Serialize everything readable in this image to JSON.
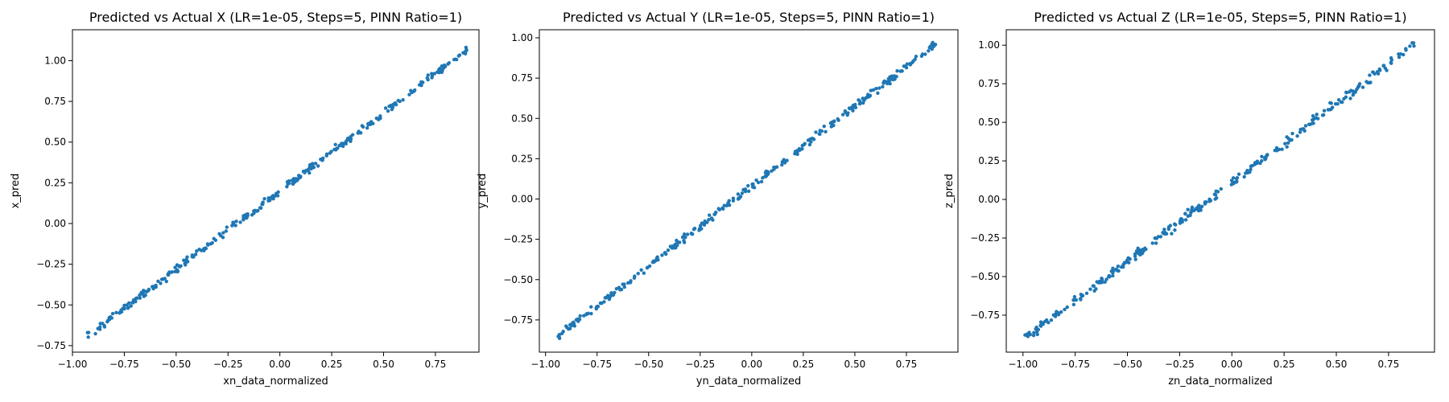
{
  "chart_data": [
    {
      "type": "scatter",
      "title": "Predicted vs Actual X (LR=1e-05, Steps=5, PINN Ratio=1)",
      "xlabel": "xn_data_normalized",
      "ylabel": "x_pred",
      "xlim": [
        -1.0,
        0.96
      ],
      "ylim": [
        -0.79,
        1.19
      ],
      "xticks": [
        -1.0,
        -0.75,
        -0.5,
        -0.25,
        0.0,
        0.25,
        0.5,
        0.75
      ],
      "yticks": [
        -0.75,
        -0.5,
        -0.25,
        0.0,
        0.25,
        0.5,
        0.75,
        1.0
      ],
      "xtick_labels": [
        "−1.00",
        "−0.75",
        "−0.50",
        "−0.25",
        "0.00",
        "0.25",
        "0.50",
        "0.75"
      ],
      "ytick_labels": [
        "−0.75",
        "−0.50",
        "−0.25",
        "0.00",
        "0.25",
        "0.50",
        "0.75",
        "1.00"
      ],
      "color": "#1f77b4",
      "grid": false,
      "x_range": [
        -0.93,
        0.9
      ],
      "fit": {
        "slope": 0.96,
        "intercept": 0.2
      },
      "noise": 0.02,
      "n_points": 300
    },
    {
      "type": "scatter",
      "title": "Predicted vs Actual Y (LR=1e-05, Steps=5, PINN Ratio=1)",
      "xlabel": "yn_data_normalized",
      "ylabel": "y_pred",
      "xlim": [
        -1.03,
        1.0
      ],
      "ylim": [
        -0.95,
        1.05
      ],
      "xticks": [
        -1.0,
        -0.75,
        -0.5,
        -0.25,
        0.0,
        0.25,
        0.5,
        0.75
      ],
      "yticks": [
        -0.75,
        -0.5,
        -0.25,
        0.0,
        0.25,
        0.5,
        0.75,
        1.0
      ],
      "xtick_labels": [
        "−1.00",
        "−0.75",
        "−0.50",
        "−0.25",
        "0.00",
        "0.25",
        "0.50",
        "0.75"
      ],
      "ytick_labels": [
        "−0.75",
        "−0.50",
        "−0.25",
        "0.00",
        "0.25",
        "0.50",
        "0.75",
        "1.00"
      ],
      "color": "#1f77b4",
      "grid": false,
      "x_range": [
        -0.94,
        0.9
      ],
      "fit": {
        "slope": 0.99,
        "intercept": 0.08
      },
      "noise": 0.02,
      "n_points": 300
    },
    {
      "type": "scatter",
      "title": "Predicted vs Actual Z (LR=1e-05, Steps=5, PINN Ratio=1)",
      "xlabel": "zn_data_normalized",
      "ylabel": "z_pred",
      "xlim": [
        -1.08,
        0.97
      ],
      "ylim": [
        -0.99,
        1.1
      ],
      "xticks": [
        -1.0,
        -0.75,
        -0.5,
        -0.25,
        0.0,
        0.25,
        0.5,
        0.75
      ],
      "yticks": [
        -0.75,
        -0.5,
        -0.25,
        0.0,
        0.25,
        0.5,
        0.75,
        1.0
      ],
      "xtick_labels": [
        "−1.00",
        "−0.75",
        "−0.50",
        "−0.25",
        "0.00",
        "0.25",
        "0.50",
        "0.75"
      ],
      "ytick_labels": [
        "−0.75",
        "−0.50",
        "−0.25",
        "0.00",
        "0.25",
        "0.50",
        "0.75",
        "1.00"
      ],
      "color": "#1f77b4",
      "grid": false,
      "x_range": [
        -0.99,
        0.88
      ],
      "fit": {
        "slope": 1.02,
        "intercept": 0.11
      },
      "noise": 0.025,
      "n_points": 300
    }
  ]
}
